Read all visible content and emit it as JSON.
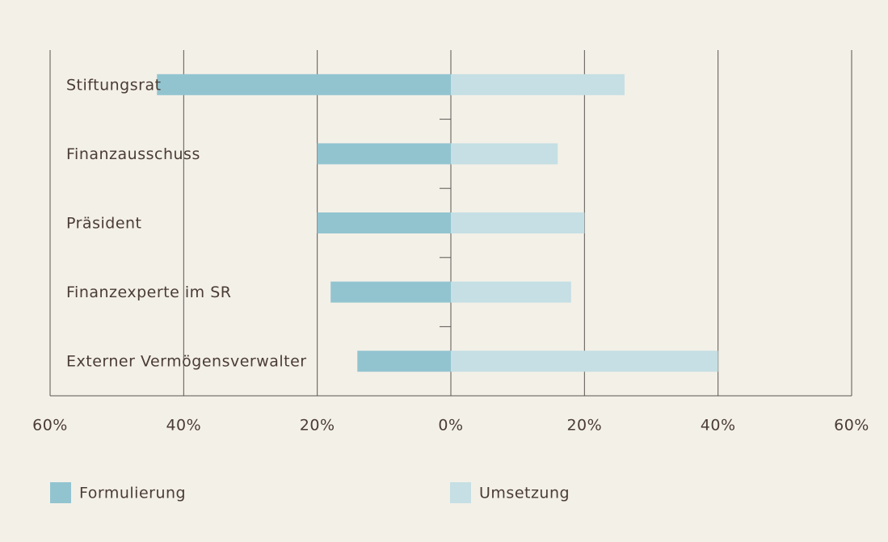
{
  "chart_data": {
    "type": "diverging-bar",
    "categories": [
      "Stiftungsrat",
      "Finanzausschuss",
      "Präsident",
      "Finanzexperte im SR",
      "Externer Vermögensverwalter"
    ],
    "series": [
      {
        "name": "Formulierung",
        "color": "#92c4d0",
        "values": [
          -44,
          -20,
          -20,
          -18,
          -14
        ]
      },
      {
        "name": "Umsetzung",
        "color": "#c5dfe4",
        "values": [
          26,
          16,
          20,
          18,
          40
        ]
      }
    ],
    "xlim": [
      -60,
      60
    ],
    "xticks": [
      {
        "value": -60,
        "label": "60%"
      },
      {
        "value": -40,
        "label": "40%"
      },
      {
        "value": -20,
        "label": "20%"
      },
      {
        "value": 0,
        "label": "0%"
      },
      {
        "value": 20,
        "label": "20%"
      },
      {
        "value": 40,
        "label": "40%"
      },
      {
        "value": 60,
        "label": "60%"
      }
    ],
    "grid": true,
    "legend": "bottom"
  }
}
